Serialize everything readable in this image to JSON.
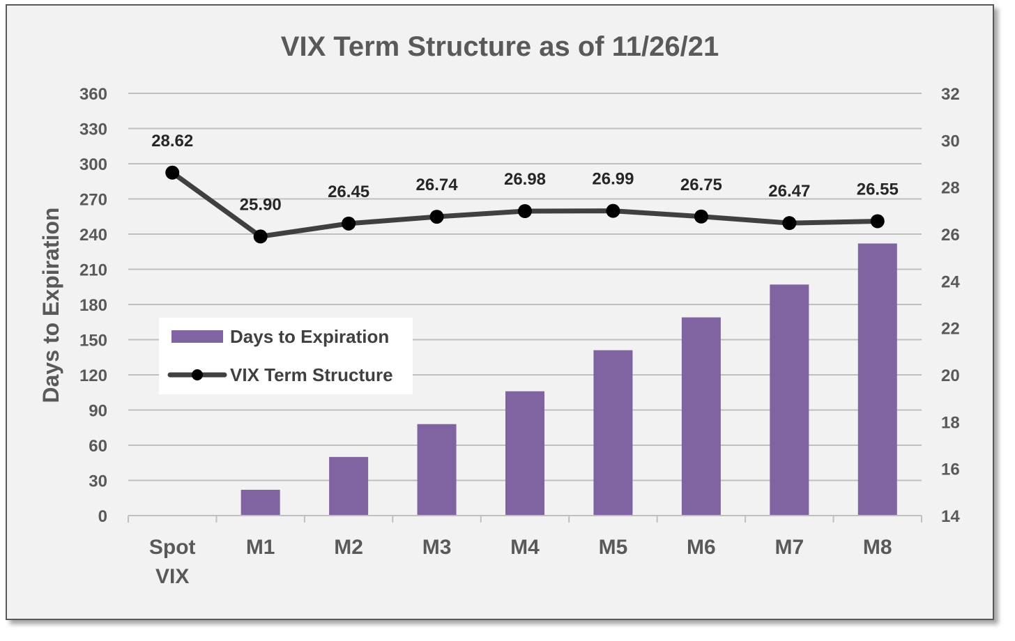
{
  "chart_data": {
    "type": "bar",
    "title": "VIX Term Structure as of 11/26/21",
    "ylabel": "Days to Expiration",
    "y2label": "",
    "categories": [
      [
        "Spot",
        "VIX"
      ],
      [
        "M1"
      ],
      [
        "M2"
      ],
      [
        "M3"
      ],
      [
        "M4"
      ],
      [
        "M5"
      ],
      [
        "M6"
      ],
      [
        "M7"
      ],
      [
        "M8"
      ]
    ],
    "ylim": [
      0,
      360
    ],
    "yticks": [
      0,
      30,
      60,
      90,
      120,
      150,
      180,
      210,
      240,
      270,
      300,
      330,
      360
    ],
    "y2lim": [
      14,
      32
    ],
    "y2ticks": [
      14,
      16,
      18,
      20,
      22,
      24,
      26,
      28,
      30,
      32
    ],
    "grid": true,
    "legend_position": "left-center",
    "series": [
      {
        "name": "Days to Expiration",
        "type": "bar",
        "axis": "left",
        "color": "#8064a2",
        "values": [
          0,
          22,
          50,
          78,
          106,
          141,
          169,
          197,
          232
        ]
      },
      {
        "name": "VIX Term Structure",
        "type": "line",
        "axis": "right",
        "color": "#404040",
        "marker": "circle",
        "values": [
          28.62,
          25.9,
          26.45,
          26.74,
          26.98,
          26.99,
          26.75,
          26.47,
          26.55
        ],
        "labels": [
          "28.62",
          "25.90",
          "26.45",
          "26.74",
          "26.98",
          "26.99",
          "26.75",
          "26.47",
          "26.55"
        ]
      }
    ]
  }
}
